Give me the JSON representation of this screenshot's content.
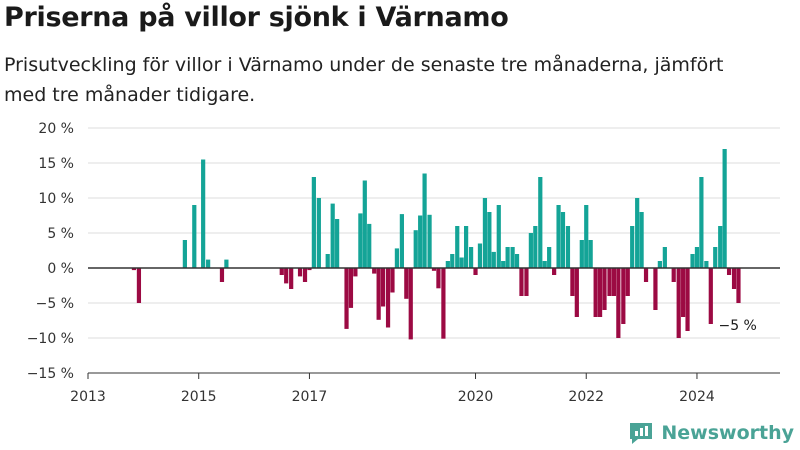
{
  "title": "Priserna på villor sjönk i Värnamo",
  "subtitle": "Prisutveckling för villor i Värnamo under de senaste tre månaderna, jämfört med tre månader tidigare.",
  "brand": "Newsworthy",
  "colors": {
    "positive": "#14a497",
    "negative": "#9c0a43",
    "grid": "#dedede",
    "baseline": "#333333"
  },
  "chart_data": {
    "type": "bar",
    "ylim": [
      -15,
      20
    ],
    "yticks": [
      20,
      15,
      10,
      5,
      0,
      -5,
      -10,
      -15
    ],
    "ytick_labels": [
      "20 %",
      "15 %",
      "10 %",
      "5 %",
      "0 %",
      "−5 %",
      "−10 %",
      "−15 %"
    ],
    "xlim": [
      2013.0,
      2025.5
    ],
    "xticks": [
      2013,
      2015,
      2017,
      2020,
      2022,
      2024
    ],
    "grid": true,
    "end_label": "−5 %",
    "x": [
      2013.83,
      2013.92,
      2014.75,
      2014.92,
      2015.08,
      2015.17,
      2015.42,
      2015.5,
      2016.5,
      2016.58,
      2016.67,
      2016.83,
      2016.92,
      2017.0,
      2017.08,
      2017.17,
      2017.33,
      2017.42,
      2017.5,
      2017.67,
      2017.75,
      2017.83,
      2017.92,
      2018.0,
      2018.08,
      2018.17,
      2018.25,
      2018.33,
      2018.42,
      2018.5,
      2018.58,
      2018.67,
      2018.75,
      2018.83,
      2018.92,
      2019.0,
      2019.08,
      2019.17,
      2019.25,
      2019.33,
      2019.42,
      2019.5,
      2019.58,
      2019.67,
      2019.75,
      2019.83,
      2019.92,
      2020.0,
      2020.08,
      2020.17,
      2020.25,
      2020.33,
      2020.42,
      2020.5,
      2020.58,
      2020.67,
      2020.75,
      2020.83,
      2020.92,
      2021.0,
      2021.08,
      2021.17,
      2021.25,
      2021.33,
      2021.42,
      2021.5,
      2021.58,
      2021.67,
      2021.75,
      2021.83,
      2021.92,
      2022.0,
      2022.08,
      2022.17,
      2022.25,
      2022.33,
      2022.42,
      2022.5,
      2022.58,
      2022.67,
      2022.75,
      2022.83,
      2022.92,
      2023.0,
      2023.08,
      2023.25,
      2023.33,
      2023.42,
      2023.58,
      2023.67,
      2023.75,
      2023.83,
      2023.92,
      2024.0,
      2024.08,
      2024.17,
      2024.25,
      2024.33,
      2024.42,
      2024.5,
      2024.58,
      2024.67,
      2024.75
    ],
    "values": [
      -0.3,
      -5,
      4,
      9,
      15.5,
      1.2,
      -2,
      1.2,
      -1,
      -2.2,
      -3,
      -1.2,
      -2,
      -0.3,
      13,
      10,
      2,
      9.2,
      7,
      -8.7,
      -5.7,
      -1.2,
      7.8,
      12.5,
      6.3,
      -0.8,
      -7.4,
      -5.5,
      -8.5,
      -3.5,
      2.8,
      7.7,
      -4.4,
      -10.2,
      5.4,
      7.5,
      13.5,
      7.6,
      -0.4,
      -2.9,
      -10.1,
      1,
      2,
      6,
      1.5,
      6,
      3,
      -1,
      3.5,
      10,
      8,
      2.3,
      9,
      1,
      3,
      3,
      2,
      -4,
      -4,
      5,
      6,
      13,
      1,
      3,
      -1,
      9,
      8,
      6,
      -4,
      -7,
      4,
      9,
      4,
      -7,
      -7,
      -6,
      -4,
      -4,
      -10,
      -8,
      -4,
      6,
      10,
      8,
      -2,
      -6,
      1,
      3,
      -2,
      -10,
      -7,
      -9,
      2,
      3,
      13,
      1,
      -8,
      3,
      6,
      17,
      -1,
      -3,
      -5
    ]
  }
}
